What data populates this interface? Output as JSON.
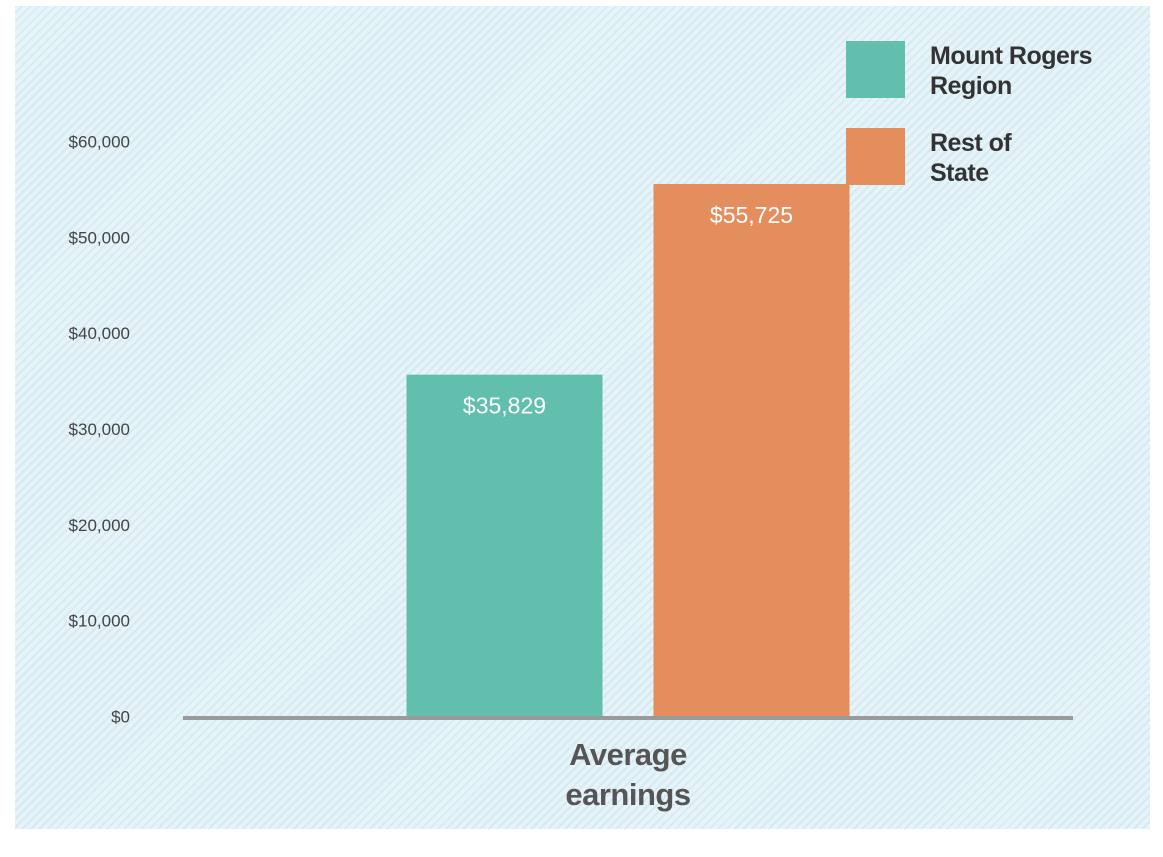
{
  "chart_data": {
    "type": "bar",
    "categories": [
      "Average earnings"
    ],
    "series": [
      {
        "name": "Mount Rogers Region",
        "color": "#62bfae",
        "values": [
          35829
        ],
        "value_labels": [
          "$35,829"
        ]
      },
      {
        "name": "Rest of State",
        "color": "#e48d5d",
        "values": [
          55725
        ],
        "value_labels": [
          "$55,725"
        ]
      }
    ],
    "ylim": [
      0,
      60000
    ],
    "yticks": [
      {
        "value": 0,
        "label": "$0"
      },
      {
        "value": 10000,
        "label": "$10,000"
      },
      {
        "value": 20000,
        "label": "$20,000"
      },
      {
        "value": 30000,
        "label": "$30,000"
      },
      {
        "value": 40000,
        "label": "$40,000"
      },
      {
        "value": 50000,
        "label": "$50,000"
      },
      {
        "value": 60000,
        "label": "$60,000"
      }
    ],
    "grid": false,
    "legend": "upper right"
  }
}
